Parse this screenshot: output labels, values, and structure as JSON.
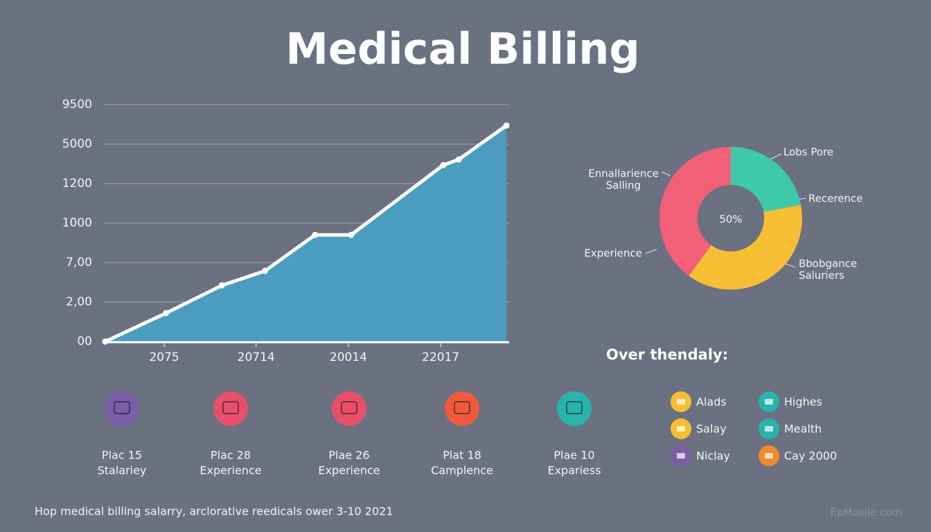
{
  "header": {
    "title": "Medical Billing"
  },
  "chart_data": [
    {
      "type": "area",
      "x": [
        0.03,
        1.38,
        2.62,
        3.58,
        4.69,
        5.49,
        7.54,
        7.88,
        8.94
      ],
      "values": [
        0,
        0.72,
        1.42,
        1.79,
        2.7,
        2.7,
        4.47,
        4.61,
        5.47
      ],
      "color": "#4a9dbf",
      "line_color": "#ffffff",
      "xlim": [
        0,
        9
      ],
      "xticks": [
        {
          "value": 1.34,
          "label": "2075"
        },
        {
          "value": 3.38,
          "label": "20714"
        },
        {
          "value": 5.43,
          "label": "20014"
        },
        {
          "value": 7.48,
          "label": "22017"
        }
      ],
      "ylim": [
        0,
        6
      ],
      "yticks": [
        {
          "value": 0,
          "label": "00"
        },
        {
          "value": 1,
          "label": "2,00"
        },
        {
          "value": 2,
          "label": "7,00"
        },
        {
          "value": 3,
          "label": "1000"
        },
        {
          "value": 4,
          "label": "1200"
        },
        {
          "value": 5,
          "label": "5000"
        },
        {
          "value": 6,
          "label": "9500"
        }
      ],
      "grid": true
    },
    {
      "type": "donut",
      "values": [
        22,
        38,
        40
      ],
      "colors": [
        "#3ec9ad",
        "#f6bf33",
        "#f25f78"
      ],
      "center_label": "50%",
      "annotations": [
        "Lobs Pore",
        "Recerence",
        "Bbobgance",
        "Saluriers",
        "Experience",
        "Ennallarience",
        "Salling"
      ]
    }
  ],
  "items": [
    {
      "color": "#7a5ea8",
      "lines": [
        "Plac 15",
        "Stalariey"
      ]
    },
    {
      "color": "#e8506a",
      "lines": [
        "Plac 28",
        "Experience"
      ]
    },
    {
      "color": "#e8506a",
      "lines": [
        "Plae 26",
        "Experience"
      ]
    },
    {
      "color": "#ef5a3c",
      "lines": [
        "Plat 18",
        "Camplence"
      ]
    },
    {
      "color": "#2ab3aa",
      "lines": [
        "Plae 10",
        "Expariess"
      ]
    }
  ],
  "legend": {
    "title": "Over thendaly:",
    "entries": [
      {
        "label": "Alads",
        "color": "#f6bf33"
      },
      {
        "label": "Highes",
        "color": "#2ab3aa"
      },
      {
        "label": "Salay",
        "color": "#f6bf33"
      },
      {
        "label": "Mealth",
        "color": "#2ab3aa"
      },
      {
        "label": "Niclay",
        "color": "#7a5ea8"
      },
      {
        "label": "Cay 2000",
        "color": "#f08a2c"
      }
    ]
  },
  "footer": "Hop medical billing salarry, arclorative reedicals ower 3-10 2021",
  "watermark": "EpMosile.com"
}
